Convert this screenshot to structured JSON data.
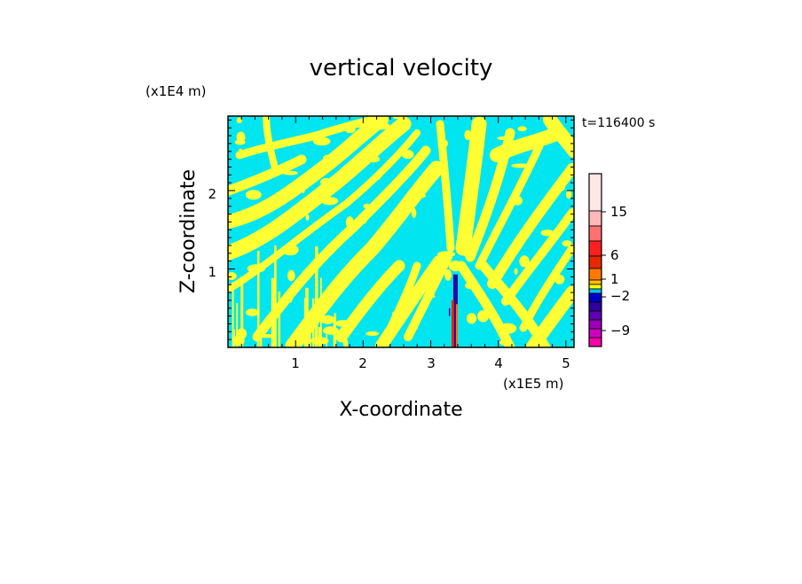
{
  "chart_data": {
    "type": "heatmap",
    "title": "vertical velocity",
    "xlabel": "X-coordinate",
    "ylabel": "Z-coordinate",
    "x_unit": "(x1E5 m)",
    "y_unit": "(x1E4 m)",
    "time_label": "t=116400 s",
    "xlim": [
      0,
      5.12
    ],
    "ylim": [
      0,
      2.95
    ],
    "x_ticks": [
      "1",
      "2",
      "3",
      "4",
      "5"
    ],
    "y_ticks": [
      "1",
      "2"
    ],
    "field_colors": {
      "negative": "#00e5f0",
      "positive": "#ffff33"
    },
    "colorbar": {
      "labels": [
        "15",
        "6",
        "1",
        "−2",
        "−9"
      ],
      "colors_top_to_bottom": [
        "#ffe6e6",
        "#ffb8b8",
        "#ff7070",
        "#ff2020",
        "#e62800",
        "#ff7a00",
        "#ffbf00",
        "#ffff00",
        "#00c0ff",
        "#0000c8",
        "#3000a0",
        "#6000b0",
        "#9a00b8",
        "#d000c0",
        "#ff00a8"
      ]
    }
  }
}
